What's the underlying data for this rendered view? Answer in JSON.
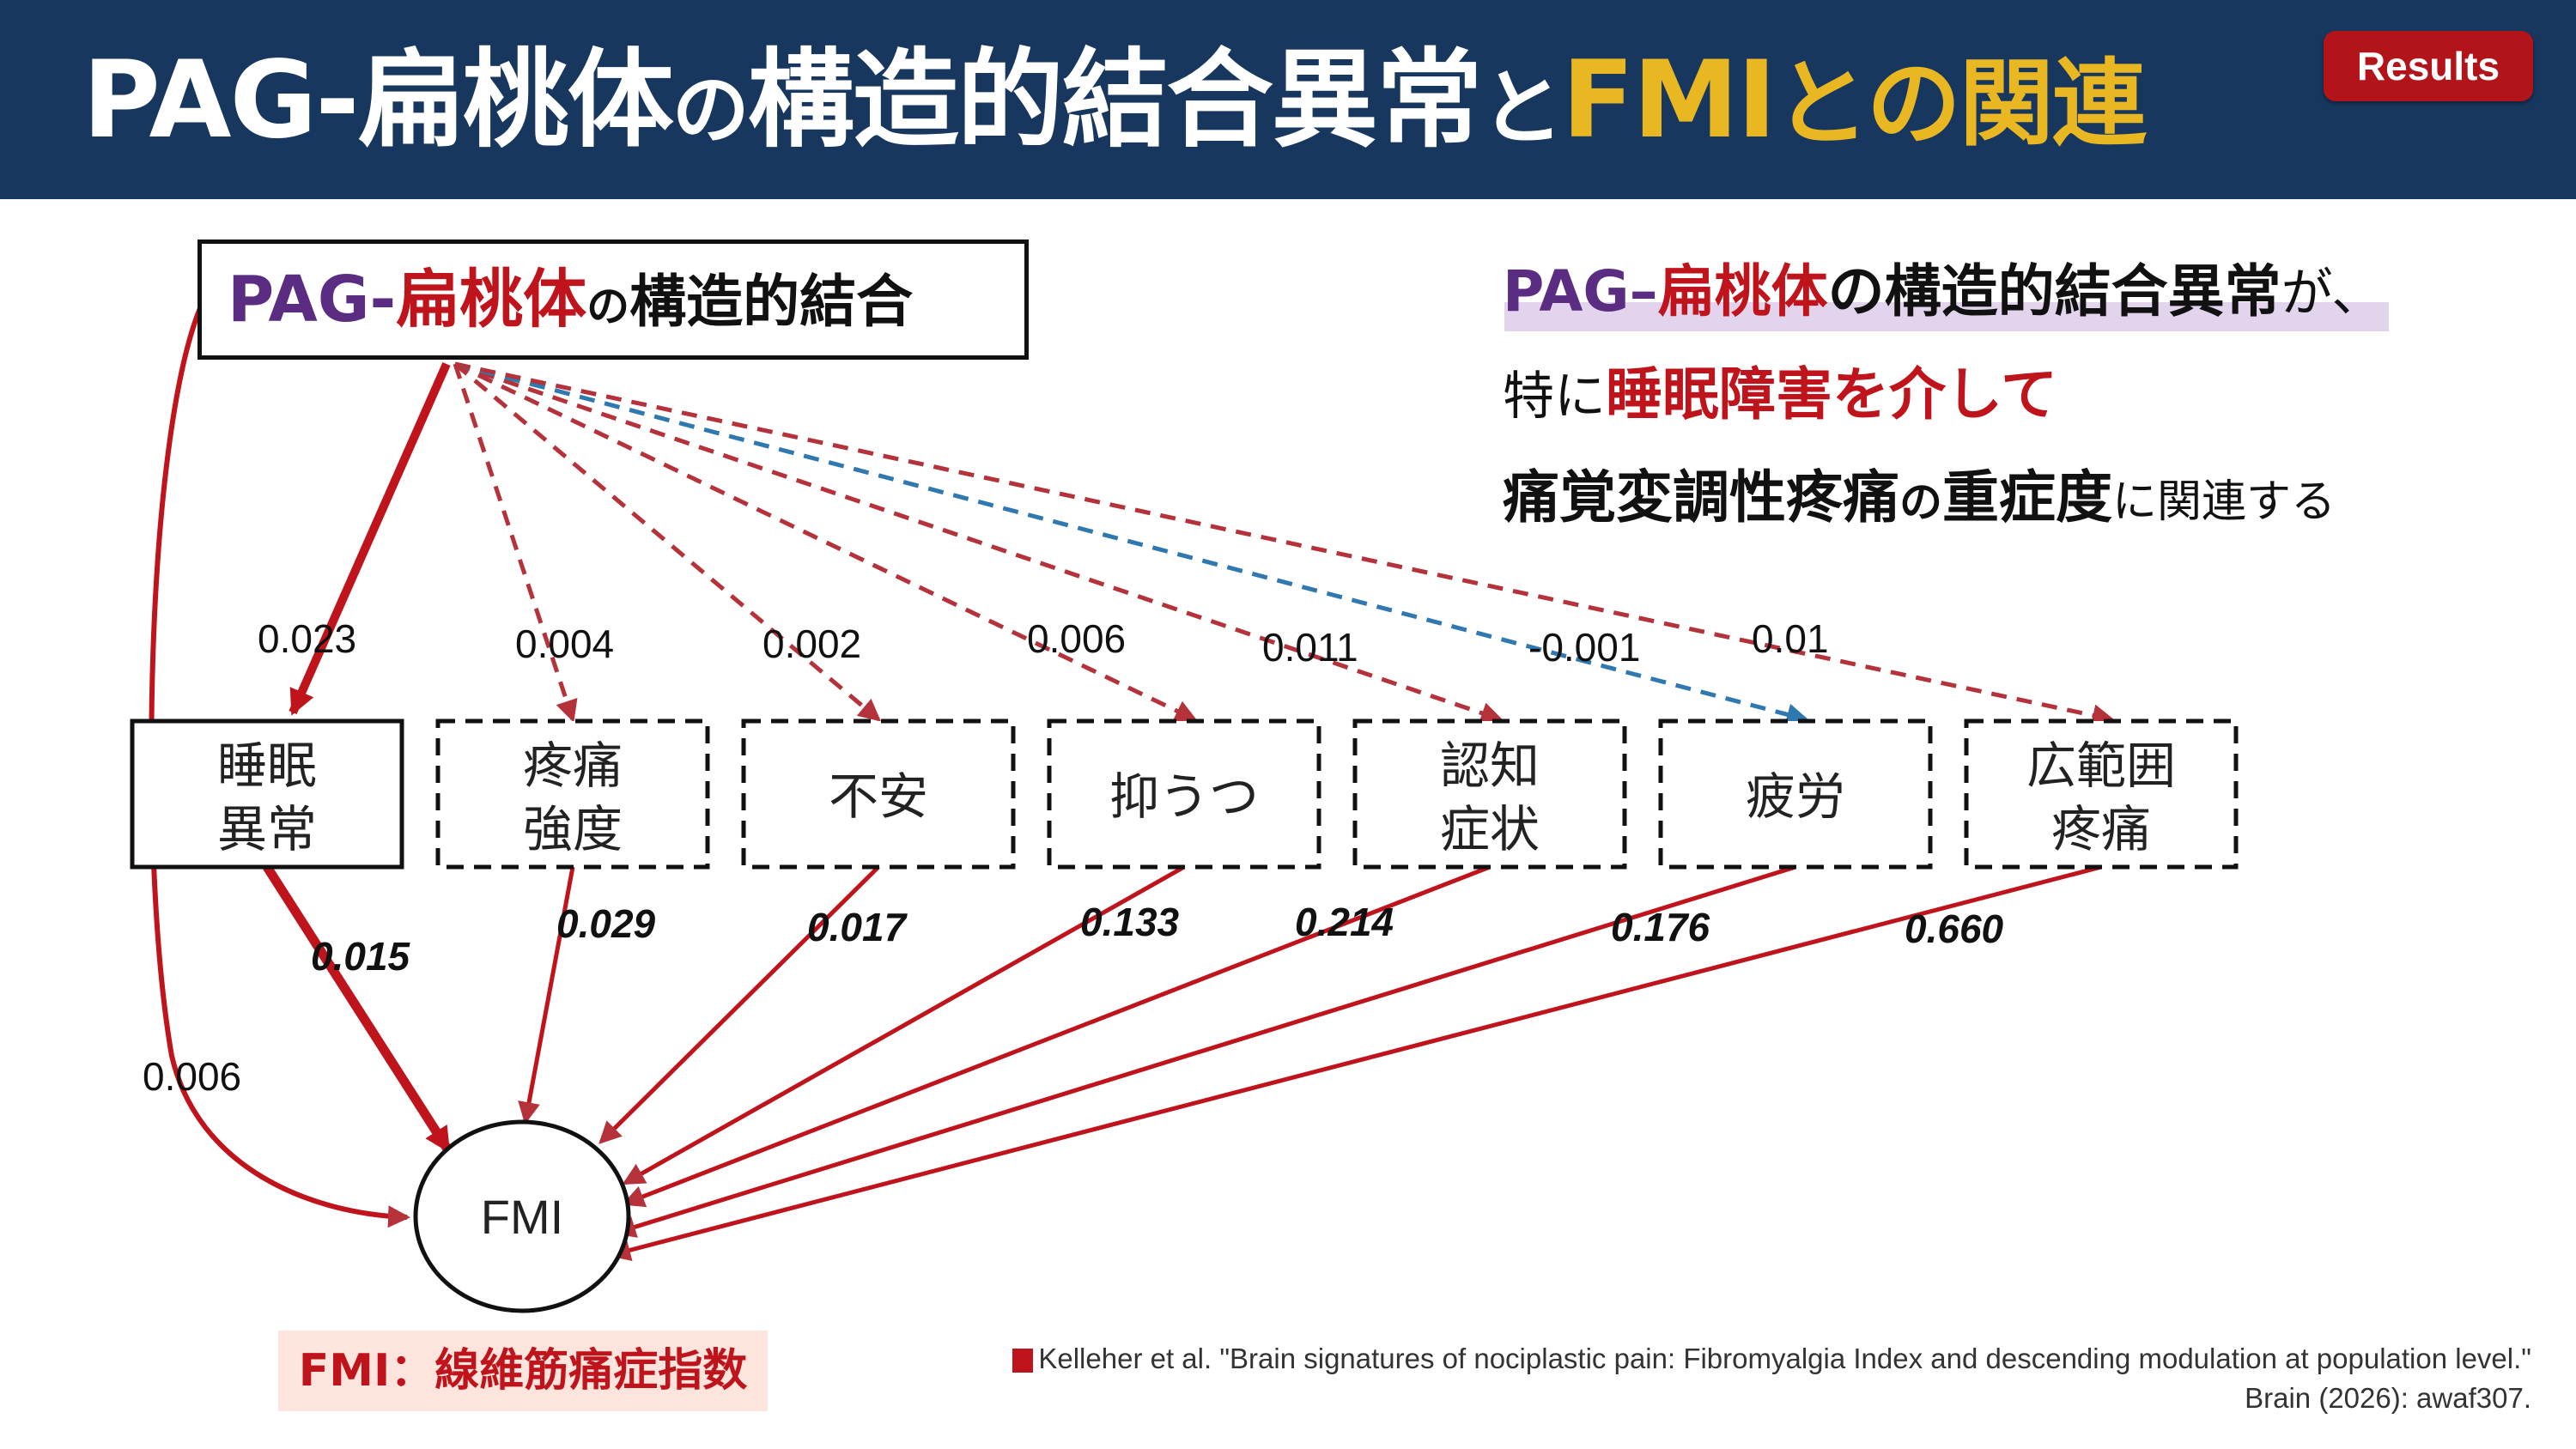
{
  "header": {
    "title_part1": "PAG-扁桃体",
    "title_part2": "の",
    "title_part3": "構造的結合異常",
    "title_part4": "と",
    "title_fmi": "FMI",
    "title_part5": "との関連",
    "badge": "Results"
  },
  "source_node": {
    "pag": "PAG-",
    "amygdala": "扁桃体",
    "no": "の",
    "rest": "構造的結合"
  },
  "summary": {
    "line1_pag": "PAG",
    "line1_dash": "–",
    "line1_amy": "扁桃体",
    "line1_rest": "の構造的結合異常",
    "line1_end": "が、",
    "line2_a": "特に",
    "line2_red": "睡眠障害を介して",
    "line3_bold": "痛覚変調性疼痛",
    "line3_no": "の",
    "line3_bold2": "重症度",
    "line3_end": "に関連する"
  },
  "mediators": [
    {
      "line1": "睡眠",
      "line2": "異常",
      "a": "0.023",
      "b": "0.015",
      "significant": true
    },
    {
      "line1": "疼痛",
      "line2": "強度",
      "a": "0.004",
      "b": "0.029",
      "significant": false
    },
    {
      "line1": "不安",
      "line2": "",
      "a": "0.002",
      "b": "0.017",
      "significant": false
    },
    {
      "line1": "抑うつ",
      "line2": "",
      "a": "0.006",
      "b": "0.133",
      "significant": false
    },
    {
      "line1": "認知",
      "line2": "症状",
      "a": "0.011",
      "b": "0.214",
      "significant": false
    },
    {
      "line1": "疲労",
      "line2": "",
      "a": "-0.001",
      "b": "0.176",
      "significant": false
    },
    {
      "line1": "広範囲",
      "line2": "疼痛",
      "a": "0.01",
      "b": "0.660",
      "significant": false
    }
  ],
  "direct_effect": "0.006",
  "outcome": "FMI",
  "fmi_definition": "FMI：線維筋痛症指数",
  "citation": {
    "line1": "Kelleher et al. \"Brain signatures of nociplastic pain: Fibromyalgia Index and descending modulation at population level.\"",
    "line2": "Brain (2026): awaf307."
  },
  "colors": {
    "header_bg": "#17375e",
    "accent_gold": "#e8b722",
    "red": "#c0141c",
    "purple": "#5b2d82",
    "blue_negative": "#2f78b0"
  }
}
